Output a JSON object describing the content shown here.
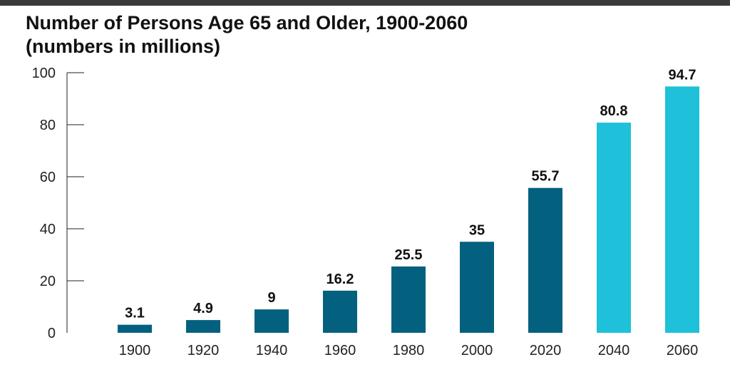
{
  "title_line1": "Number of Persons Age 65 and Older, 1900-2060",
  "title_line2": "(numbers in millions)",
  "colors": {
    "historical": "#04607f",
    "projected": "#1fc0da",
    "axis": "#222222",
    "topbar": "#3a3a3a"
  },
  "chart_data": {
    "type": "bar",
    "title": "Number of Persons Age 65 and Older, 1900-2060 (numbers in millions)",
    "categories": [
      "1900",
      "1920",
      "1940",
      "1960",
      "1980",
      "2000",
      "2020",
      "2040",
      "2060"
    ],
    "values": [
      3.1,
      4.9,
      9,
      16.2,
      25.5,
      35,
      55.7,
      80.8,
      94.7
    ],
    "data_labels": [
      "3.1",
      "4.9",
      "9",
      "16.2",
      "25.5",
      "35",
      "55.7",
      "80.8",
      "94.7"
    ],
    "bar_colors": [
      "#04607f",
      "#04607f",
      "#04607f",
      "#04607f",
      "#04607f",
      "#04607f",
      "#04607f",
      "#1fc0da",
      "#1fc0da"
    ],
    "yticks": [
      "0",
      "20",
      "40",
      "60",
      "80",
      "100"
    ],
    "ylim": [
      0,
      100
    ],
    "xlabel": "",
    "ylabel": "",
    "grid": false,
    "legend": "none"
  }
}
